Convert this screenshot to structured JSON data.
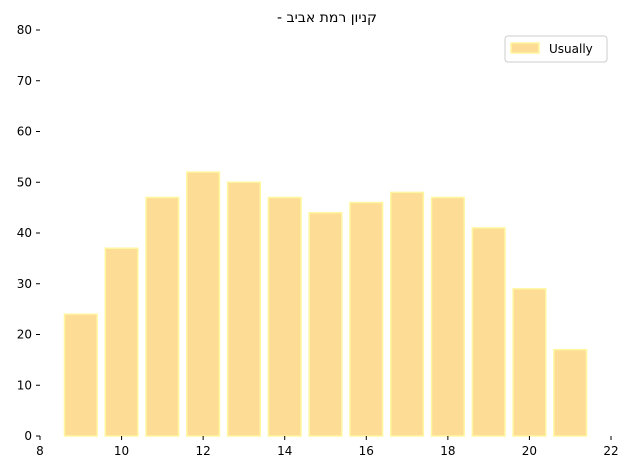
{
  "chart_data": {
    "type": "bar",
    "title": "קניון רמת אביב -",
    "xlabel": "",
    "ylabel": "",
    "x": [
      9,
      10,
      11,
      12,
      13,
      14,
      15,
      16,
      17,
      18,
      19,
      20,
      21
    ],
    "series": [
      {
        "name": "Usually",
        "values": [
          24,
          37,
          47,
          52,
          50,
          47,
          44,
          46,
          48,
          47,
          41,
          29,
          17
        ]
      }
    ],
    "xlim": [
      8,
      22
    ],
    "ylim": [
      0,
      80
    ],
    "xticks": [
      8,
      10,
      12,
      14,
      16,
      18,
      20,
      22
    ],
    "yticks": [
      0,
      10,
      20,
      30,
      40,
      50,
      60,
      70,
      80
    ],
    "bar_width": 0.8,
    "grid": false,
    "legend": "top-right",
    "colors": {
      "bar_fill": "#fddd96",
      "bar_edge": "#fff6a0"
    }
  }
}
